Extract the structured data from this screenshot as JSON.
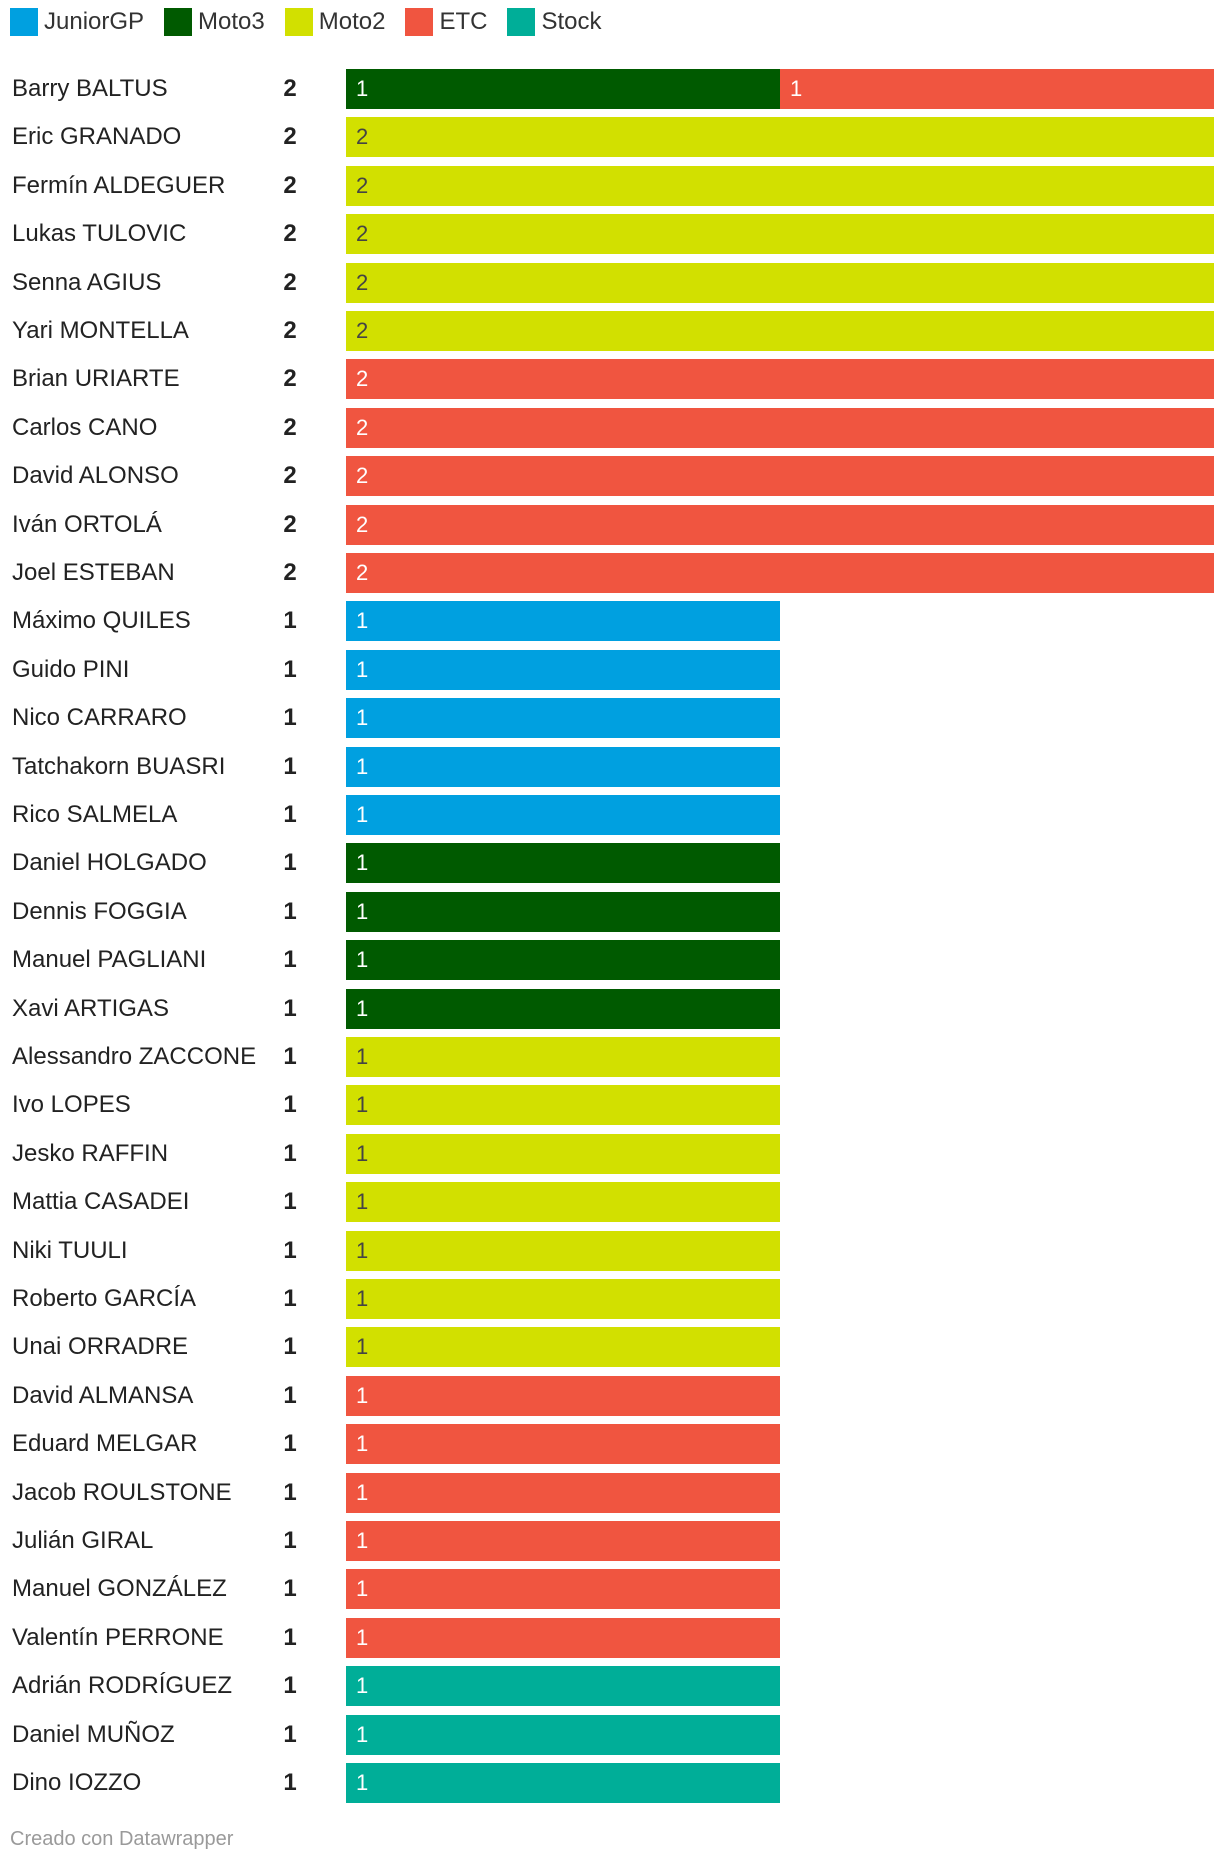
{
  "legend": [
    {
      "label": "JuniorGP",
      "color": "#00a0e0"
    },
    {
      "label": "Moto3",
      "color": "#005a00"
    },
    {
      "label": "Moto2",
      "color": "#d2e000"
    },
    {
      "label": "ETC",
      "color": "#f05540"
    },
    {
      "label": "Stock",
      "color": "#00ae98"
    }
  ],
  "footer": "Creado con Datawrapper",
  "chart_data": {
    "type": "bar",
    "orientation": "horizontal",
    "stacked": true,
    "categories": [
      "Barry BALTUS",
      "Eric GRANADO",
      "Fermín ALDEGUER",
      "Lukas TULOVIC",
      "Senna AGIUS",
      "Yari MONTELLA",
      "Brian URIARTE",
      "Carlos CANO",
      "David ALONSO",
      "Iván ORTOLÁ",
      "Joel ESTEBAN",
      "Máximo QUILES",
      "Guido PINI",
      "Nico CARRARO",
      "Tatchakorn BUASRI",
      "Rico SALMELA",
      "Daniel HOLGADO",
      "Dennis FOGGIA",
      "Manuel PAGLIANI",
      "Xavi ARTIGAS",
      "Alessandro ZACCONE",
      "Ivo LOPES",
      "Jesko RAFFIN",
      "Mattia CASADEI",
      "Niki TUULI",
      "Roberto GARCÍA",
      "Unai ORRADRE",
      "David ALMANSA",
      "Eduard MELGAR",
      "Jacob ROULSTONE",
      "Julián GIRAL",
      "Manuel GONZÁLEZ",
      "Valentín PERRONE",
      "Adrián RODRÍGUEZ",
      "Daniel MUÑOZ",
      "Dino IOZZO"
    ],
    "totals": [
      2,
      2,
      2,
      2,
      2,
      2,
      2,
      2,
      2,
      2,
      2,
      1,
      1,
      1,
      1,
      1,
      1,
      1,
      1,
      1,
      1,
      1,
      1,
      1,
      1,
      1,
      1,
      1,
      1,
      1,
      1,
      1,
      1,
      1,
      1,
      1
    ],
    "series": [
      {
        "name": "JuniorGP",
        "color": "#00a0e0",
        "text_color": "#ffffff",
        "values": [
          0,
          0,
          0,
          0,
          0,
          0,
          0,
          0,
          0,
          0,
          0,
          1,
          1,
          1,
          1,
          1,
          0,
          0,
          0,
          0,
          0,
          0,
          0,
          0,
          0,
          0,
          0,
          0,
          0,
          0,
          0,
          0,
          0,
          0,
          0,
          0
        ]
      },
      {
        "name": "Moto3",
        "color": "#005a00",
        "text_color": "#ffffff",
        "values": [
          1,
          0,
          0,
          0,
          0,
          0,
          0,
          0,
          0,
          0,
          0,
          0,
          0,
          0,
          0,
          0,
          1,
          1,
          1,
          1,
          0,
          0,
          0,
          0,
          0,
          0,
          0,
          0,
          0,
          0,
          0,
          0,
          0,
          0,
          0,
          0
        ]
      },
      {
        "name": "Moto2",
        "color": "#d2e000",
        "text_color": "#444444",
        "values": [
          0,
          2,
          2,
          2,
          2,
          2,
          0,
          0,
          0,
          0,
          0,
          0,
          0,
          0,
          0,
          0,
          0,
          0,
          0,
          0,
          1,
          1,
          1,
          1,
          1,
          1,
          1,
          0,
          0,
          0,
          0,
          0,
          0,
          0,
          0,
          0
        ]
      },
      {
        "name": "ETC",
        "color": "#f05540",
        "text_color": "#ffffff",
        "values": [
          1,
          0,
          0,
          0,
          0,
          0,
          2,
          2,
          2,
          2,
          2,
          0,
          0,
          0,
          0,
          0,
          0,
          0,
          0,
          0,
          0,
          0,
          0,
          0,
          0,
          0,
          0,
          1,
          1,
          1,
          1,
          1,
          1,
          0,
          0,
          0
        ]
      },
      {
        "name": "Stock",
        "color": "#00ae98",
        "text_color": "#ffffff",
        "values": [
          0,
          0,
          0,
          0,
          0,
          0,
          0,
          0,
          0,
          0,
          0,
          0,
          0,
          0,
          0,
          0,
          0,
          0,
          0,
          0,
          0,
          0,
          0,
          0,
          0,
          0,
          0,
          0,
          0,
          0,
          0,
          0,
          0,
          1,
          1,
          1
        ]
      }
    ],
    "xlim": [
      0,
      2
    ],
    "grid": false,
    "legend_position": "top-left"
  }
}
